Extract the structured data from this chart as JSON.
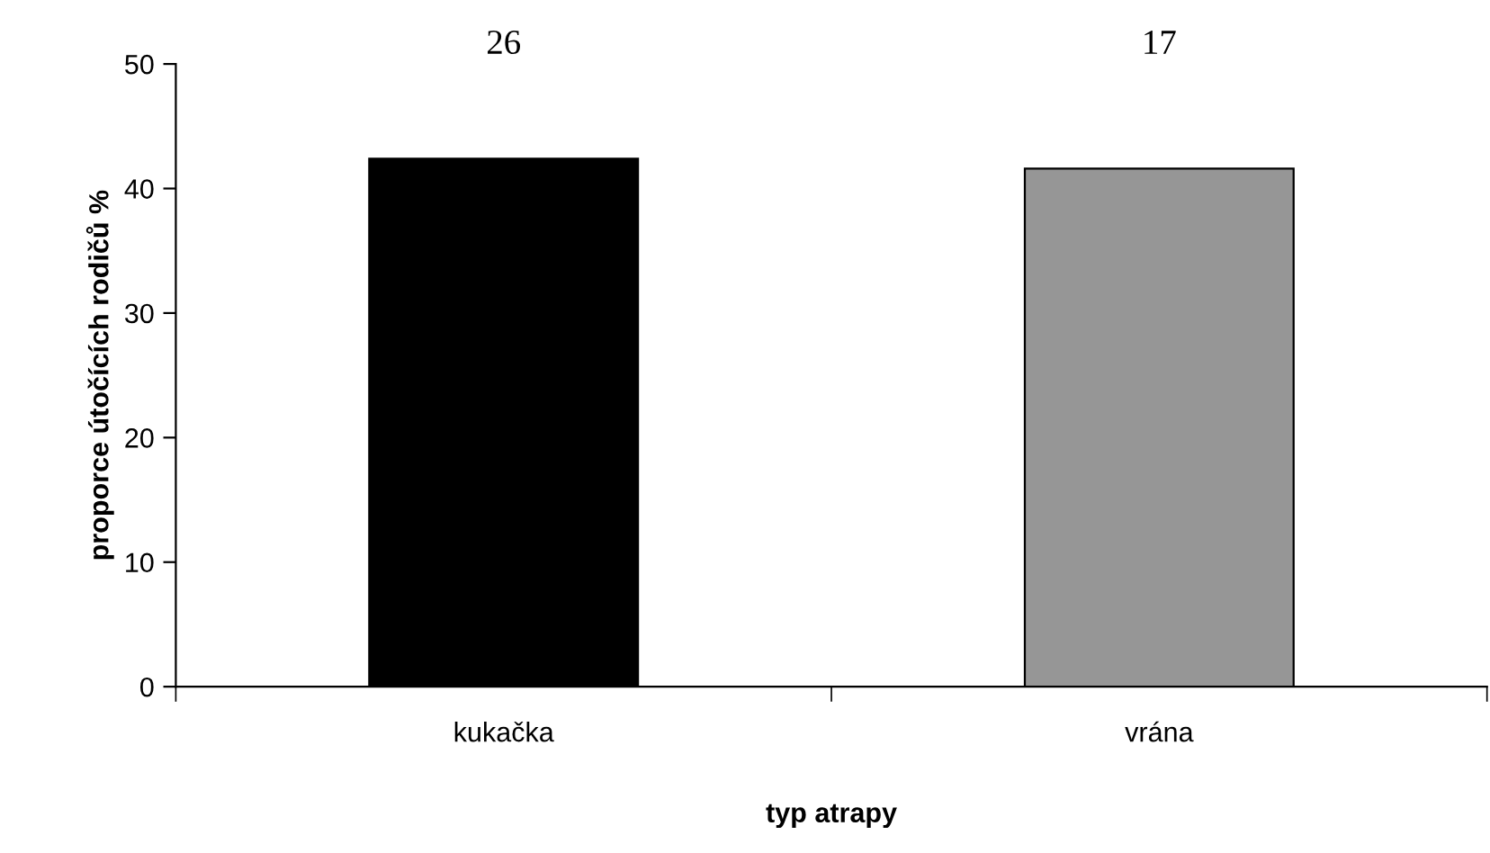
{
  "chart_data": {
    "type": "bar",
    "xlabel": "typ atrapy",
    "ylabel": "proporce útočících rodičů %",
    "categories": [
      "kukačka",
      "vrána"
    ],
    "series": [
      {
        "colors": [
          "#000000",
          "#969696"
        ],
        "values": [
          42.4,
          41.6
        ]
      }
    ],
    "ylim": [
      0,
      50
    ],
    "yticks": [
      0,
      10,
      20,
      30,
      40,
      50
    ],
    "grid": false,
    "legend": false,
    "annotations": [
      "26",
      "17"
    ]
  }
}
